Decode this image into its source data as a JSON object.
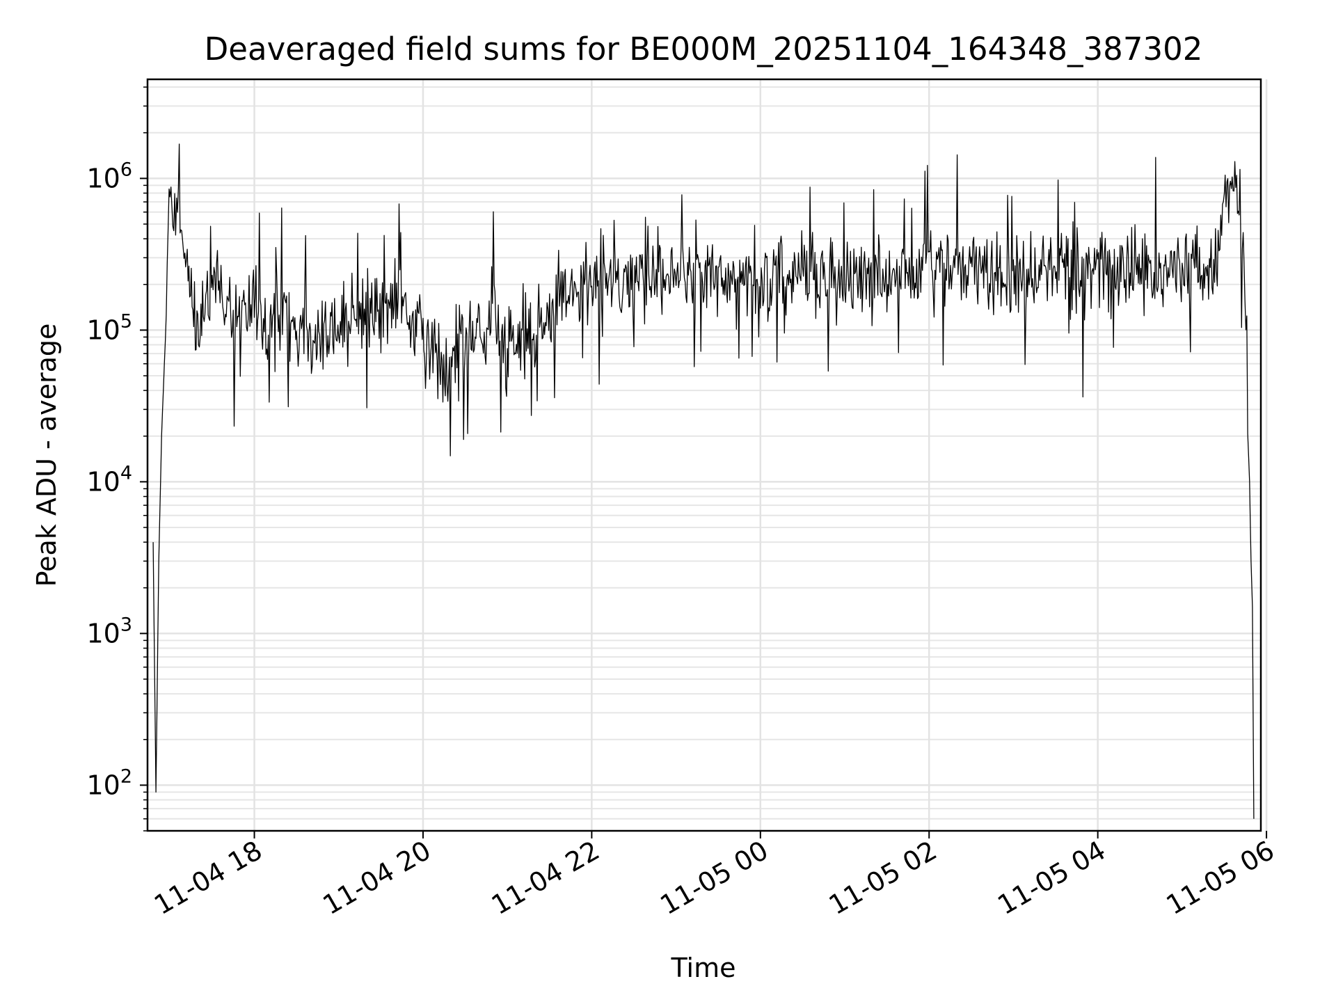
{
  "chart_data": {
    "type": "line",
    "title": "Deaveraged field sums for BE000M_20251104_164348_387302",
    "xlabel": "Time",
    "ylabel": "Peak ADU - average",
    "yscale": "log",
    "ylim": [
      50,
      4500000
    ],
    "xlim": [
      "2025-11-04 16:44",
      "2025-11-05 05:56"
    ],
    "grid": true,
    "legend": "none",
    "line_color": "#000000",
    "x_ticks": [
      {
        "x": "2025-11-04 18:00",
        "label": "11-04 18"
      },
      {
        "x": "2025-11-04 20:00",
        "label": "11-04 20"
      },
      {
        "x": "2025-11-04 22:00",
        "label": "11-04 22"
      },
      {
        "x": "2025-11-05 00:00",
        "label": "11-05 00"
      },
      {
        "x": "2025-11-05 02:00",
        "label": "11-05 02"
      },
      {
        "x": "2025-11-05 04:00",
        "label": "11-05 04"
      },
      {
        "x": "2025-11-05 06:00",
        "label": "11-05 06"
      }
    ],
    "y_ticks": [
      {
        "y": 100,
        "base": "10",
        "exp": "2"
      },
      {
        "y": 1000,
        "base": "10",
        "exp": "3"
      },
      {
        "y": 10000,
        "base": "10",
        "exp": "4"
      },
      {
        "y": 100000,
        "base": "10",
        "exp": "5"
      },
      {
        "y": 1000000,
        "base": "10",
        "exp": "6"
      }
    ],
    "series": [
      {
        "x": [
          "2025-11-04 16:48",
          "2025-11-04 16:50",
          "2025-11-04 16:52",
          "2025-11-04 16:54",
          "2025-11-04 16:56",
          "2025-11-04 16:58",
          "2025-11-04 17:00",
          "2025-11-04 17:02",
          "2025-11-04 17:04",
          "2025-11-04 17:06",
          "2025-11-04 17:10",
          "2025-11-04 17:14",
          "2025-11-04 17:18",
          "2025-11-04 17:22",
          "2025-11-04 17:26",
          "2025-11-04 17:30",
          "2025-11-04 17:35",
          "2025-11-04 17:40",
          "2025-11-04 17:45",
          "2025-11-04 17:50",
          "2025-11-04 17:55",
          "2025-11-04 18:00",
          "2025-11-04 18:10",
          "2025-11-04 18:20",
          "2025-11-04 18:30",
          "2025-11-04 18:40",
          "2025-11-04 18:50",
          "2025-11-04 19:00",
          "2025-11-04 19:10",
          "2025-11-04 19:20",
          "2025-11-04 19:30",
          "2025-11-04 19:40",
          "2025-11-04 19:50",
          "2025-11-04 20:00",
          "2025-11-04 20:10",
          "2025-11-04 20:20",
          "2025-11-04 20:30",
          "2025-11-04 20:40",
          "2025-11-04 20:50",
          "2025-11-04 21:00",
          "2025-11-04 21:10",
          "2025-11-04 21:20",
          "2025-11-04 21:30",
          "2025-11-04 21:40",
          "2025-11-04 21:50",
          "2025-11-04 22:00",
          "2025-11-04 22:10",
          "2025-11-04 22:20",
          "2025-11-04 22:30",
          "2025-11-04 22:40",
          "2025-11-04 22:50",
          "2025-11-04 23:00",
          "2025-11-04 23:10",
          "2025-11-04 23:20",
          "2025-11-04 23:30",
          "2025-11-04 23:40",
          "2025-11-04 23:50",
          "2025-11-05 00:00",
          "2025-11-05 00:10",
          "2025-11-05 00:20",
          "2025-11-05 00:30",
          "2025-11-05 00:40",
          "2025-11-05 00:50",
          "2025-11-05 01:00",
          "2025-11-05 01:10",
          "2025-11-05 01:20",
          "2025-11-05 01:30",
          "2025-11-05 01:40",
          "2025-11-05 01:50",
          "2025-11-05 02:00",
          "2025-11-05 02:10",
          "2025-11-05 02:20",
          "2025-11-05 02:30",
          "2025-11-05 02:40",
          "2025-11-05 02:50",
          "2025-11-05 03:00",
          "2025-11-05 03:10",
          "2025-11-05 03:20",
          "2025-11-05 03:30",
          "2025-11-05 03:40",
          "2025-11-05 03:50",
          "2025-11-05 04:00",
          "2025-11-05 04:10",
          "2025-11-05 04:20",
          "2025-11-05 04:30",
          "2025-11-05 04:40",
          "2025-11-05 04:50",
          "2025-11-05 05:00",
          "2025-11-05 05:10",
          "2025-11-05 05:20",
          "2025-11-05 05:25",
          "2025-11-05 05:30",
          "2025-11-05 05:35",
          "2025-11-05 05:40",
          "2025-11-05 05:44",
          "2025-11-05 05:46",
          "2025-11-05 05:48",
          "2025-11-05 05:49",
          "2025-11-05 05:50",
          "2025-11-05 05:51"
        ],
        "y": [
          4000,
          90,
          3000,
          20000,
          60000,
          300000,
          700000,
          800000,
          600000,
          450000,
          300000,
          200000,
          150000,
          120000,
          180000,
          200000,
          150000,
          160000,
          140000,
          130000,
          120000,
          140000,
          110000,
          120000,
          100000,
          90000,
          100000,
          95000,
          110000,
          120000,
          130000,
          150000,
          130000,
          100000,
          80000,
          70000,
          90000,
          100000,
          120000,
          90000,
          80000,
          100000,
          140000,
          160000,
          180000,
          200000,
          220000,
          230000,
          210000,
          200000,
          220000,
          230000,
          220000,
          210000,
          230000,
          220000,
          210000,
          200000,
          220000,
          250000,
          230000,
          210000,
          220000,
          210000,
          240000,
          230000,
          220000,
          260000,
          250000,
          270000,
          260000,
          250000,
          240000,
          230000,
          220000,
          240000,
          230000,
          220000,
          250000,
          240000,
          230000,
          250000,
          240000,
          230000,
          250000,
          260000,
          240000,
          250000,
          260000,
          250000,
          260000,
          800000,
          900000,
          700000,
          400000,
          30000,
          10000,
          3000,
          1500,
          60
        ]
      }
    ]
  }
}
